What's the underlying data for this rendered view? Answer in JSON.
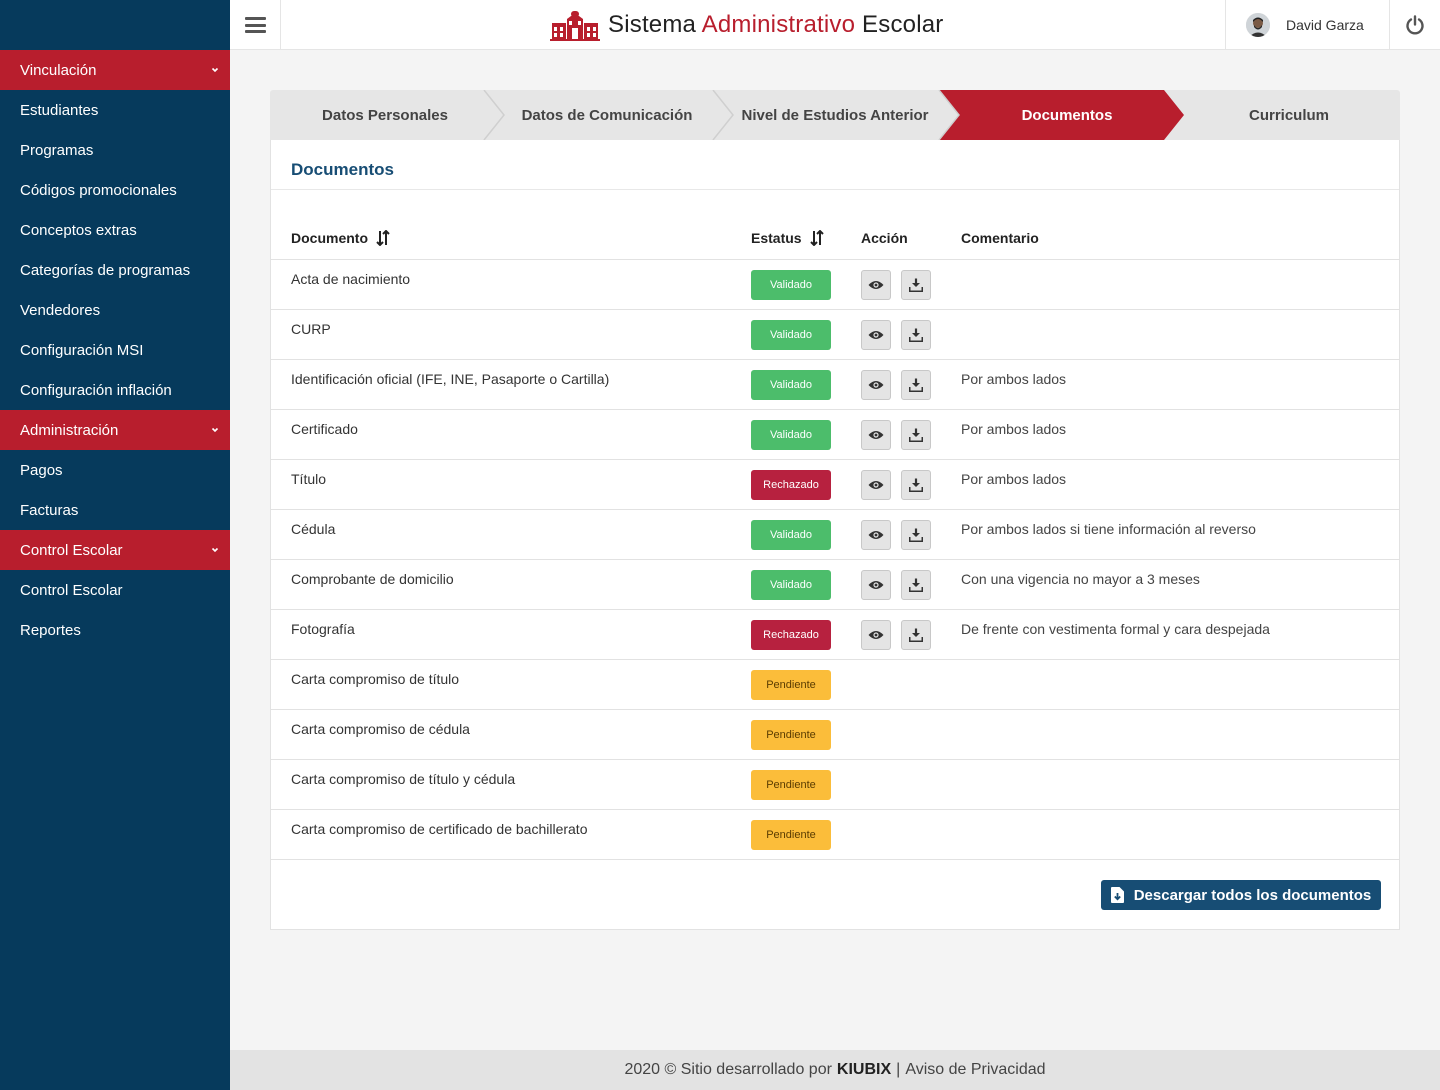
{
  "header": {
    "title_part1": "Sistema",
    "title_accent": "Administrativo",
    "title_part2": "Escolar",
    "user_name": "David Garza"
  },
  "sidebar": {
    "items": [
      {
        "label": "Vinculación",
        "group": true
      },
      {
        "label": "Estudiantes",
        "group": false
      },
      {
        "label": "Programas",
        "group": false
      },
      {
        "label": "Códigos promocionales",
        "group": false
      },
      {
        "label": "Conceptos extras",
        "group": false
      },
      {
        "label": "Categorías de programas",
        "group": false
      },
      {
        "label": "Vendedores",
        "group": false
      },
      {
        "label": "Configuración MSI",
        "group": false
      },
      {
        "label": "Configuración inflación",
        "group": false
      },
      {
        "label": "Administración",
        "group": true
      },
      {
        "label": "Pagos",
        "group": false
      },
      {
        "label": "Facturas",
        "group": false
      },
      {
        "label": "Control Escolar",
        "group": true
      },
      {
        "label": "Control Escolar",
        "group": false
      },
      {
        "label": "Reportes",
        "group": false
      }
    ]
  },
  "wizard": {
    "steps": [
      "Datos Personales",
      "Datos de Comunicación",
      "Nivel de Estudios Anterior",
      "Documentos",
      "Curriculum"
    ],
    "active_index": 3
  },
  "card": {
    "title": "Documentos",
    "columns": {
      "document": "Documento",
      "status": "Estatus",
      "action": "Acción",
      "comment": "Comentario"
    },
    "rows": [
      {
        "document": "Acta de nacimiento",
        "status": "Validado",
        "actions": true,
        "comment": ""
      },
      {
        "document": "CURP",
        "status": "Validado",
        "actions": true,
        "comment": ""
      },
      {
        "document": "Identificación oficial (IFE, INE, Pasaporte o Cartilla)",
        "status": "Validado",
        "actions": true,
        "comment": "Por ambos lados"
      },
      {
        "document": "Certificado",
        "status": "Validado",
        "actions": true,
        "comment": "Por ambos lados"
      },
      {
        "document": "Título",
        "status": "Rechazado",
        "actions": true,
        "comment": "Por ambos lados"
      },
      {
        "document": "Cédula",
        "status": "Validado",
        "actions": true,
        "comment": "Por ambos lados si tiene información al reverso"
      },
      {
        "document": "Comprobante de domicilio",
        "status": "Validado",
        "actions": true,
        "comment": "Con una vigencia no mayor a 3 meses"
      },
      {
        "document": "Fotografía",
        "status": "Rechazado",
        "actions": true,
        "comment": "De frente con vestimenta formal y cara despejada"
      },
      {
        "document": "Carta compromiso de título",
        "status": "Pendiente",
        "actions": false,
        "comment": ""
      },
      {
        "document": "Carta compromiso de cédula",
        "status": "Pendiente",
        "actions": false,
        "comment": ""
      },
      {
        "document": "Carta compromiso de título y cédula",
        "status": "Pendiente",
        "actions": false,
        "comment": ""
      },
      {
        "document": "Carta compromiso de certificado de bachillerato",
        "status": "Pendiente",
        "actions": false,
        "comment": ""
      }
    ],
    "download_all_label": "Descargar todos los documentos"
  },
  "footer": {
    "text": "2020 © Sitio desarrollado por",
    "brand": "KIUBIX",
    "separator": "|",
    "privacy": "Aviso de Privacidad"
  },
  "colors": {
    "sidebar": "#063a5c",
    "accent_red": "#b81e2d",
    "primary_blue": "#174d74",
    "validated": "#4cbd6b",
    "rejected": "#b7213f",
    "pending": "#fbbd3a"
  },
  "icons": {
    "menu": "hamburger-icon",
    "logo": "school-building-icon",
    "power": "power-icon",
    "sort": "sort-icon",
    "view": "eye-icon",
    "download": "download-icon",
    "download_file": "file-download-icon",
    "expand": "chevron-down-icon"
  }
}
